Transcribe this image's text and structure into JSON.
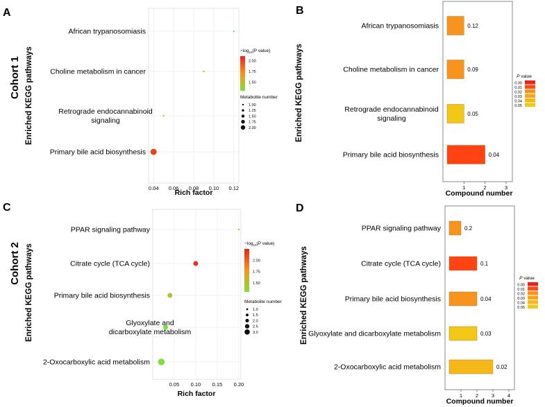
{
  "figure": {
    "cohort1_label": "Cohort 1",
    "cohort2_label": "Cohort 2",
    "colors": {
      "grad_high": "#e8251a",
      "grad_mid": "#f7941d",
      "grad_low": "#7fe03a",
      "bar_edge": "#555555"
    }
  },
  "chart_data": [
    {
      "panel": "A",
      "type": "scatter",
      "xlabel": "Rich factor",
      "ylabel": "Enriched KEGG pathways",
      "xlim": [
        0.035,
        0.125
      ],
      "xticks": [
        "0.04",
        "0.06",
        "0.08",
        "0.10",
        "0.12"
      ],
      "xtick_values": [
        0.04,
        0.06,
        0.08,
        0.1,
        0.12
      ],
      "categories": [
        "African trypanosomiasis",
        "Choline metabolism in cancer",
        "Retrograde endocannabinoid signaling",
        "Primary bile acid biosynthesis"
      ],
      "x": [
        0.12,
        0.09,
        0.05,
        0.04
      ],
      "neglog10p": [
        1.3,
        1.5,
        1.4,
        2.0
      ],
      "metabolite_number": [
        1,
        1,
        1,
        2
      ],
      "legend": {
        "color_title_prefix": "−log",
        "color_title_sub": "10",
        "color_title_suffix": "(P value)",
        "color_ticks": [
          "2.00",
          "1.75",
          "1.50"
        ],
        "color_tick_values": [
          2.0,
          1.75,
          1.5
        ],
        "color_range": [
          1.3,
          2.1
        ],
        "size_title": "Metabolite number",
        "size_labels": [
          "1.00",
          "1.25",
          "1.50",
          "1.75",
          "2.00"
        ],
        "size_values": [
          1.0,
          1.25,
          1.5,
          1.75,
          2.0
        ]
      }
    },
    {
      "panel": "B",
      "type": "bar",
      "xlabel": "Compound number",
      "ylabel": "Enriched KEGG pathways",
      "xlim": [
        0,
        3.3
      ],
      "xticks": [
        "1",
        "2",
        "3"
      ],
      "xtick_values": [
        1,
        2,
        3
      ],
      "categories": [
        "African trypanosomiasis",
        "Choline metabolism in cancer",
        "Retrograde endocannabinoid signaling",
        "Primary bile acid biosynthesis"
      ],
      "values": [
        1,
        1,
        1,
        2
      ],
      "pvalues": [
        0.12,
        0.09,
        0.05,
        0.04
      ],
      "data_labels": [
        "0.12",
        "0.09",
        "0.05",
        "0.04"
      ],
      "bar_colors": [
        "#f7941d",
        "#f7941d",
        "#f2c716",
        "#ff4312"
      ],
      "legend": {
        "title_italic": "P",
        "title_rest": " value",
        "items": [
          "0.00",
          "0.01",
          "0.02",
          "0.03",
          "0.04",
          "0.05"
        ],
        "colors": [
          "#e8251a",
          "#ff4a14",
          "#f7941d",
          "#f5a61a",
          "#f5b818",
          "#f2c716"
        ]
      }
    },
    {
      "panel": "C",
      "type": "scatter",
      "xlabel": "Rich factor",
      "ylabel": "Enriched KEGG pathways",
      "xlim": [
        0.0,
        0.205
      ],
      "xticks": [
        "0.05",
        "0.10",
        "0.15",
        "0.20"
      ],
      "xtick_values": [
        0.05,
        0.1,
        0.15,
        0.2
      ],
      "categories": [
        "PPAR signaling pathway",
        "Citrate cycle (TCA cycle)",
        "Primary bile acid biosynthesis",
        "Glyoxylate and dicarboxylate metabolism",
        "2-Oxocarboxylic acid metabolism"
      ],
      "x": [
        0.2,
        0.1,
        0.04,
        0.03,
        0.02
      ],
      "neglog10p": [
        1.4,
        2.2,
        1.5,
        1.3,
        1.25
      ],
      "metabolite_number": [
        1,
        2,
        2,
        2,
        3
      ],
      "legend": {
        "color_title_prefix": "−log",
        "color_title_sub": "10",
        "color_title_suffix": "(P value)",
        "color_ticks": [
          "2.00",
          "1.75",
          "1.50"
        ],
        "color_tick_values": [
          2.0,
          1.75,
          1.5
        ],
        "color_range": [
          1.3,
          2.25
        ],
        "size_title": "Metabolite number",
        "size_labels": [
          "1.0",
          "1.5",
          "2.0",
          "2.5",
          "3.0"
        ],
        "size_values": [
          1.0,
          1.5,
          2.0,
          2.5,
          3.0
        ]
      }
    },
    {
      "panel": "D",
      "type": "bar",
      "xlabel": "Compound number",
      "ylabel": "Enriched KEGG pathways",
      "xlim": [
        0,
        4.35
      ],
      "xticks": [
        "1",
        "2",
        "3",
        "4"
      ],
      "xtick_values": [
        1,
        2,
        3,
        4
      ],
      "categories": [
        "PPAR signaling pathway",
        "Citrate cycle (TCA cycle)",
        "Primary bile acid biosynthesis",
        "Glyoxylate and dicarboxylate metabolism",
        "2-Oxocarboxylic acid metabolism"
      ],
      "values": [
        1,
        2,
        2,
        2,
        3
      ],
      "pvalues": [
        0.2,
        0.1,
        0.04,
        0.03,
        0.02
      ],
      "data_labels": [
        "0.2",
        "0.1",
        "0.04",
        "0.03",
        "0.02"
      ],
      "bar_colors": [
        "#f7941d",
        "#ff4312",
        "#f7941d",
        "#f2c716",
        "#f5b818"
      ],
      "legend": {
        "title_italic": "P",
        "title_rest": " value",
        "items": [
          "0.00",
          "0.01",
          "0.02",
          "0.03",
          "0.04",
          "0.05"
        ],
        "colors": [
          "#e8251a",
          "#ff4a14",
          "#f7941d",
          "#f5a61a",
          "#f5b818",
          "#f2c716"
        ]
      }
    }
  ]
}
